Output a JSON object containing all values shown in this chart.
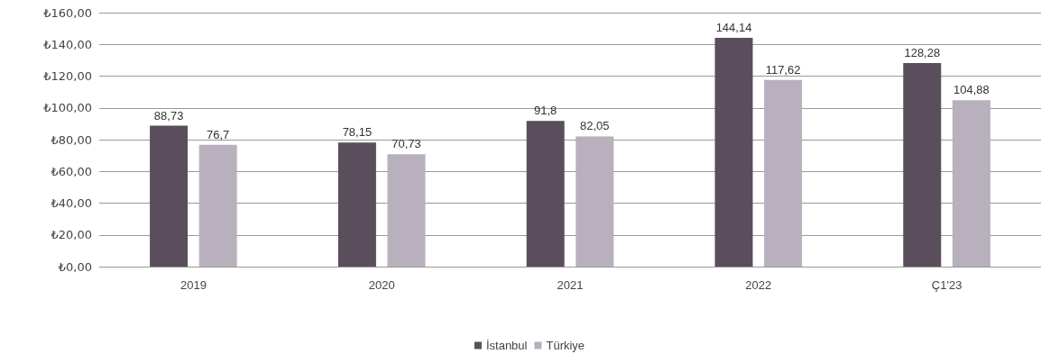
{
  "chart_data": {
    "type": "bar",
    "categories": [
      "2019",
      "2020",
      "2021",
      "2022",
      "Ç1'23"
    ],
    "series": [
      {
        "name": "İstanbul",
        "color": "#5a4d5c",
        "values": [
          88.73,
          78.15,
          91.8,
          144.14,
          128.28
        ]
      },
      {
        "name": "Türkiye",
        "color": "#b8b0bd",
        "values": [
          76.7,
          70.73,
          82.05,
          117.62,
          104.88
        ]
      }
    ],
    "ylim": [
      0,
      160
    ],
    "yticks": [
      {
        "value": 0,
        "label": "₺0,00"
      },
      {
        "value": 20,
        "label": "₺20,00"
      },
      {
        "value": 40,
        "label": "₺40,00"
      },
      {
        "value": 60,
        "label": "₺60,00"
      },
      {
        "value": 80,
        "label": "₺80,00"
      },
      {
        "value": 100,
        "label": "₺100,00"
      },
      {
        "value": 120,
        "label": "₺120,00"
      },
      {
        "value": 140,
        "label": "₺140,00"
      },
      {
        "value": 160,
        "label": "₺160,00"
      }
    ],
    "grid": "y",
    "legend": "bottom",
    "value_labels": [
      [
        "88,73",
        "78,15",
        "91,8",
        "144,14",
        "128,28"
      ],
      [
        "76,7",
        "70,73",
        "82,05",
        "117,62",
        "104,88"
      ]
    ]
  }
}
